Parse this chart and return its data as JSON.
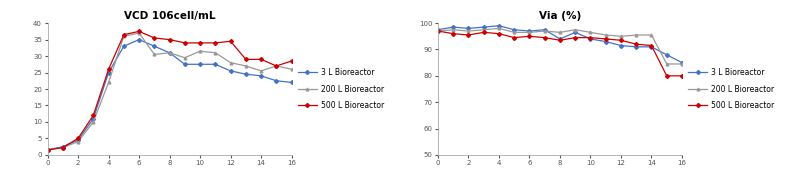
{
  "vcd": {
    "title": "VCD 106cell/mL",
    "x": [
      0,
      1,
      2,
      3,
      4,
      5,
      6,
      7,
      8,
      9,
      10,
      11,
      12,
      13,
      14,
      15,
      16
    ],
    "line3L": [
      1.5,
      2.5,
      4.5,
      11.0,
      25.0,
      33.0,
      35.0,
      33.0,
      31.0,
      27.5,
      27.5,
      27.5,
      25.5,
      24.5,
      24.0,
      22.5,
      22.0
    ],
    "line200L": [
      1.5,
      2.2,
      4.0,
      10.0,
      22.0,
      36.0,
      37.0,
      30.5,
      31.0,
      29.5,
      31.5,
      31.0,
      28.0,
      27.0,
      25.5,
      27.0,
      26.0
    ],
    "line500L": [
      1.5,
      2.2,
      5.0,
      12.0,
      26.0,
      36.5,
      37.5,
      35.5,
      35.0,
      34.0,
      34.0,
      34.0,
      34.5,
      29.0,
      29.0,
      27.0,
      28.5
    ],
    "ylim": [
      0,
      40
    ],
    "yticks": [
      0,
      5,
      10,
      15,
      20,
      25,
      30,
      35,
      40
    ],
    "xlim": [
      0,
      16
    ],
    "xticks": [
      0,
      2,
      4,
      6,
      8,
      10,
      12,
      14,
      16
    ]
  },
  "via": {
    "title": "Via (%)",
    "x": [
      0,
      1,
      2,
      3,
      4,
      5,
      6,
      7,
      8,
      9,
      10,
      11,
      12,
      13,
      14,
      15,
      16
    ],
    "line3L": [
      97.5,
      98.5,
      98.0,
      98.5,
      99.0,
      97.5,
      97.0,
      97.5,
      94.0,
      96.5,
      94.0,
      93.0,
      91.5,
      91.0,
      91.0,
      88.0,
      85.0
    ],
    "line200L": [
      97.0,
      97.5,
      97.0,
      97.5,
      98.0,
      96.5,
      96.5,
      97.0,
      96.5,
      97.5,
      96.5,
      95.5,
      95.0,
      95.5,
      95.5,
      84.5,
      84.5
    ],
    "line500L": [
      97.0,
      96.0,
      95.5,
      96.5,
      96.0,
      94.5,
      95.0,
      94.5,
      93.5,
      94.5,
      94.5,
      94.0,
      93.5,
      92.0,
      91.5,
      80.0,
      80.0
    ],
    "ylim": [
      50,
      100
    ],
    "yticks": [
      50,
      60,
      70,
      80,
      90,
      100
    ],
    "xlim": [
      0,
      16
    ],
    "xticks": [
      0,
      2,
      4,
      6,
      8,
      10,
      12,
      14,
      16
    ]
  },
  "color3L": "#4472C4",
  "color200L": "#999999",
  "color500L": "#CC0000",
  "legend_labels": [
    "3 L Bioreactor",
    "200 L Bioreactor",
    "500 L Bioreactor"
  ],
  "marker3L": "D",
  "marker200L": "^",
  "marker500L": "D",
  "title_fontsize": 7.5,
  "tick_fontsize": 5.0,
  "legend_fontsize": 5.5,
  "linewidth": 0.9,
  "markersize": 2.0
}
